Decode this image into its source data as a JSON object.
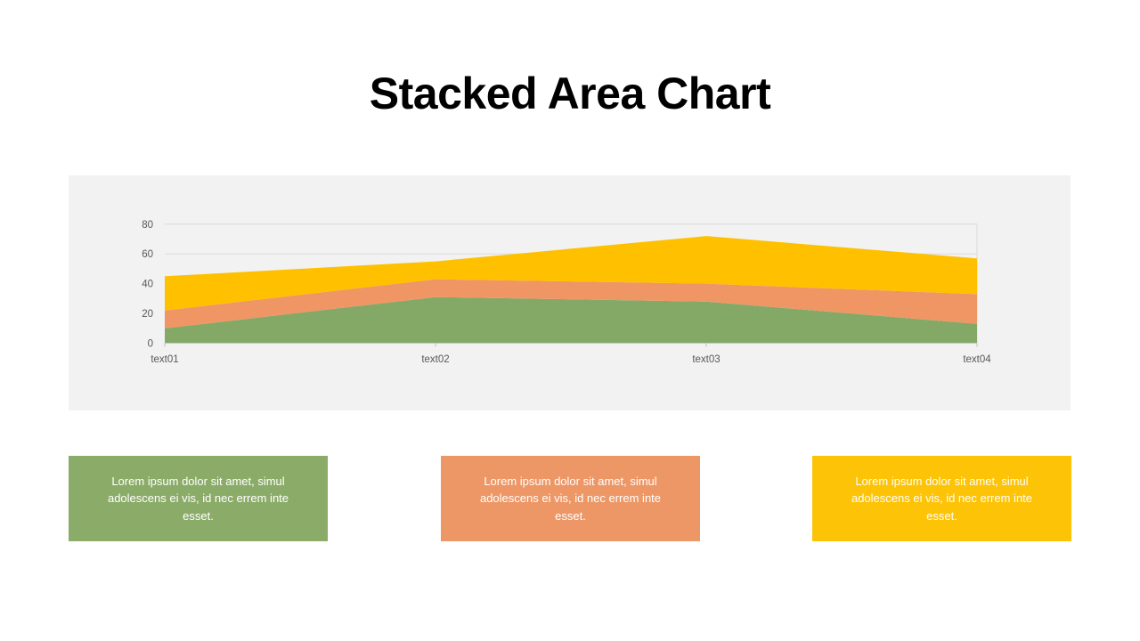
{
  "title": "Stacked Area Chart",
  "chart_data": {
    "type": "area",
    "stacked": true,
    "title": "",
    "xlabel": "",
    "ylabel": "",
    "categories": [
      "text01",
      "text02",
      "text03",
      "text04"
    ],
    "series": [
      {
        "name": "green",
        "color": "#84A967",
        "values": [
          10,
          31,
          28,
          13
        ]
      },
      {
        "name": "orange",
        "color": "#EF9664",
        "values": [
          12,
          12,
          12,
          20
        ]
      },
      {
        "name": "yellow",
        "color": "#FFC000",
        "values": [
          23,
          12,
          32,
          24
        ]
      }
    ],
    "y_ticks": [
      0,
      20,
      40,
      60,
      80
    ],
    "ylim": [
      0,
      80
    ],
    "grid": true,
    "legend": "none",
    "plot_bg": "#f2f2f2",
    "grid_color": "#d9d9d9",
    "axis_line_color": "#c6c6c6",
    "tick_color": "#bfbfbf",
    "axis_label_color": "#595959"
  },
  "cards": [
    {
      "text": "Lorem ipsum dolor sit amet, simul adolescens ei vis, id nec errem inte esset.",
      "color": "#8BAC69"
    },
    {
      "text": "Lorem ipsum dolor sit amet, simul adolescens ei vis, id nec errem inte esset.",
      "color": "#EE9766"
    },
    {
      "text": "Lorem ipsum dolor sit amet, simul adolescens ei vis, id nec errem inte esset.",
      "color": "#FDC306"
    }
  ]
}
